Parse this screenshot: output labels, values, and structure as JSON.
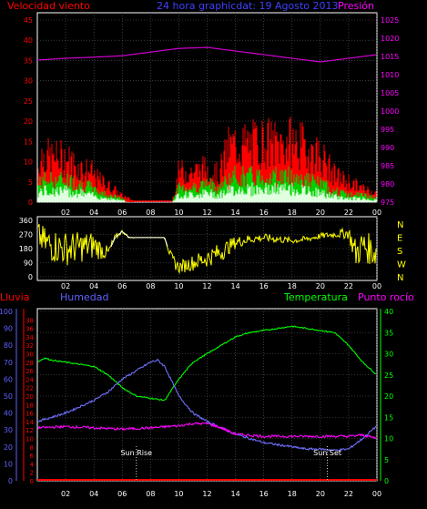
{
  "title": "24 hora graphicdat: 19 Agosto 2013",
  "colors": {
    "background": "#000000",
    "frame": "#ffffff",
    "grid": "#606060",
    "wind": "#ff0000",
    "gust_green": "#00d000",
    "wind_light": "#e0ffe0",
    "pressure": "#d000d0",
    "direction": "#ffff00",
    "humidity": "#7070ff",
    "temperature": "#00ff00",
    "dewpoint": "#ff00ff",
    "rain": "#ff0000",
    "axis_left_red": "#ff0000",
    "axis_pressure": "#ff00ff",
    "axis_humidity": "#6060ff",
    "axis_temp": "#00ff00"
  },
  "chart_data": [
    {
      "type": "area",
      "id": "wind-pressure",
      "label_left": "Velocidad viento",
      "label_right": "Presión",
      "x_ticks": [
        "02",
        "04",
        "06",
        "08",
        "10",
        "12",
        "14",
        "16",
        "18",
        "20",
        "22",
        "00"
      ],
      "x_range_hours": [
        0,
        24
      ],
      "y_left_ticks": [
        "0",
        "5",
        "10",
        "15",
        "20",
        "25",
        "30",
        "35",
        "40",
        "45"
      ],
      "y_left_range": [
        0,
        45
      ],
      "y_right_ticks": [
        "975",
        "980",
        "985",
        "990",
        "995",
        "1000",
        "1005",
        "1010",
        "1015",
        "1020",
        "1025"
      ],
      "y_right_range": [
        975,
        1025
      ],
      "pressure_series": {
        "hours": [
          0,
          2,
          4,
          6,
          8,
          10,
          12,
          14,
          16,
          18,
          20,
          22,
          24
        ],
        "values": [
          1014,
          1014.5,
          1014.8,
          1015.2,
          1016.2,
          1017.2,
          1017.5,
          1016.5,
          1015.5,
          1014.5,
          1013.5,
          1014.5,
          1015.5
        ]
      },
      "wind_profile": {
        "hours": [
          0,
          0.3,
          1,
          2,
          3,
          3.8,
          4.2,
          5,
          6,
          6.5,
          7,
          8,
          9,
          9.5,
          10,
          11,
          12,
          12.8,
          13.5,
          14,
          15,
          16,
          17,
          18,
          19,
          20,
          21,
          22,
          23,
          24
        ],
        "gust": [
          9,
          14,
          13,
          13,
          10,
          9,
          7,
          5,
          2,
          1,
          0,
          0,
          0,
          0,
          9,
          9,
          10,
          8,
          16,
          17,
          17,
          18,
          17,
          18,
          16,
          14,
          8,
          6,
          4,
          3
        ],
        "avg": [
          4,
          6,
          6,
          6,
          5,
          4,
          3,
          2,
          1,
          0,
          0,
          0,
          0,
          0,
          4,
          4,
          5,
          4,
          6,
          7,
          7,
          7,
          7,
          7,
          6,
          5,
          3,
          2,
          2,
          1
        ]
      }
    },
    {
      "type": "line",
      "id": "wind-direction",
      "y_left_ticks": [
        "0",
        "90",
        "180",
        "270",
        "360"
      ],
      "y_left_range": [
        0,
        360
      ],
      "y_right_ticks": [
        "N",
        "W",
        "S",
        "E",
        "N"
      ],
      "x_ticks": [
        "02",
        "04",
        "06",
        "08",
        "10",
        "12",
        "14",
        "16",
        "18",
        "20",
        "22",
        "00"
      ],
      "profile": {
        "hours": [
          0,
          0.5,
          1,
          2,
          3,
          4,
          5,
          5.5,
          6,
          6.5,
          7,
          8,
          9,
          9.5,
          10,
          11,
          12,
          13,
          14,
          15,
          16,
          17,
          18,
          19,
          20,
          21,
          22,
          22.5,
          23,
          24
        ],
        "base": [
          270,
          220,
          200,
          180,
          190,
          200,
          150,
          250,
          290,
          250,
          250,
          250,
          250,
          110,
          60,
          90,
          120,
          160,
          220,
          240,
          250,
          240,
          230,
          240,
          260,
          270,
          280,
          150,
          200,
          150
        ],
        "noise": [
          80,
          100,
          110,
          110,
          100,
          90,
          40,
          20,
          10,
          5,
          0,
          0,
          0,
          40,
          40,
          50,
          60,
          60,
          40,
          30,
          25,
          25,
          20,
          20,
          20,
          20,
          40,
          100,
          100,
          100
        ]
      }
    },
    {
      "type": "line",
      "id": "temp-humidity",
      "labels": [
        "Lluvia",
        "Humedad",
        "Temperatura",
        "Punto rocío"
      ],
      "rain_ticks": [
        "0",
        "10",
        "20",
        "30",
        "40",
        "50",
        "60",
        "70",
        "80",
        "90",
        "100"
      ],
      "humidity_ticks": [
        "0",
        "2",
        "4",
        "6",
        "8",
        "10",
        "12",
        "14",
        "16",
        "18",
        "20",
        "22",
        "24",
        "26",
        "28",
        "30",
        "32",
        "34",
        "36",
        "38"
      ],
      "temp_ticks": [
        "0",
        "5",
        "10",
        "15",
        "20",
        "25",
        "30",
        "35",
        "40"
      ],
      "temp_range": [
        0,
        40
      ],
      "x_ticks": [
        "02",
        "04",
        "06",
        "08",
        "10",
        "12",
        "14",
        "16",
        "18",
        "20",
        "22",
        "00"
      ],
      "annotations": [
        {
          "label": "Sun Rise",
          "hour": 7
        },
        {
          "label": "Sun Set",
          "hour": 20.5
        }
      ],
      "temperature": {
        "hours": [
          0,
          0.5,
          1,
          2,
          3,
          4,
          5,
          6,
          7,
          8,
          9,
          10,
          11,
          12,
          13,
          14,
          15,
          16,
          17,
          18,
          19,
          20,
          21,
          22,
          23,
          24
        ],
        "values": [
          28,
          29,
          28.5,
          28,
          27.5,
          27,
          25,
          22,
          20,
          19.5,
          19,
          24,
          28,
          30,
          32,
          34,
          35,
          35.5,
          36,
          36.5,
          36,
          35.5,
          35,
          32,
          28,
          25
        ]
      },
      "humidity": {
        "hours": [
          0,
          1,
          2,
          3,
          4,
          5,
          6,
          7,
          8,
          8.5,
          9,
          10,
          11,
          12,
          13,
          14,
          15,
          16,
          17,
          18,
          19,
          20,
          21,
          22,
          23,
          24
        ],
        "values": [
          14,
          15,
          16,
          17.5,
          19,
          21,
          24,
          26,
          28,
          28.5,
          27,
          20,
          16,
          14,
          12.5,
          11,
          10,
          9,
          8.5,
          8,
          7.5,
          7.5,
          7.2,
          7.5,
          10,
          13
        ]
      },
      "dewpoint": {
        "hours": [
          0,
          2,
          4,
          6,
          8,
          10,
          11,
          12,
          13,
          14,
          16,
          18,
          20,
          22,
          23,
          24
        ],
        "values": [
          12.5,
          12.8,
          12.5,
          12.2,
          12.5,
          13,
          13.5,
          13.5,
          12.5,
          11,
          10.5,
          10.5,
          10.5,
          10.5,
          10.8,
          10
        ]
      },
      "rain": {
        "values": [
          0
        ]
      }
    }
  ]
}
